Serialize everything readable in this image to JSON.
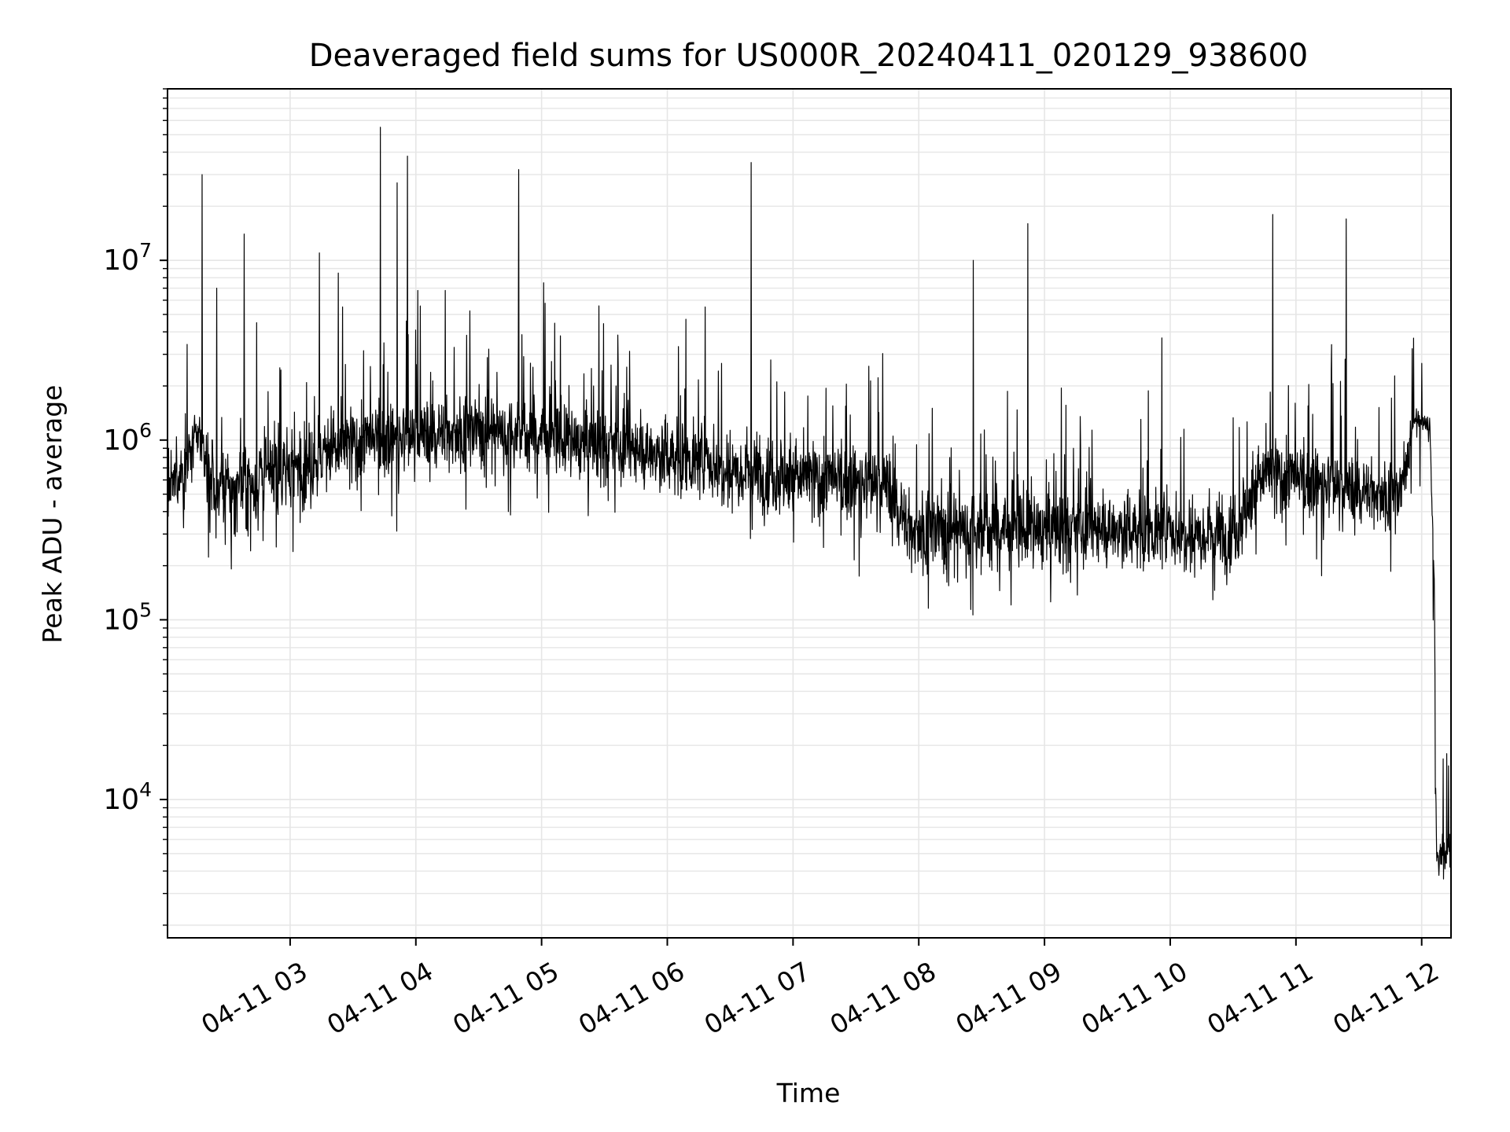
{
  "chart_data": {
    "type": "line",
    "title": "Deaveraged field sums for US000R_20240411_020129_938600",
    "xlabel": "Time",
    "ylabel": "Peak ADU - average",
    "x_axis": {
      "kind": "time",
      "range": [
        "2024-04-11 02:01:29",
        "2024-04-11 12:14:00"
      ],
      "ticks": [
        {
          "value": "2024-04-11 03:00",
          "label": "04-11 03"
        },
        {
          "value": "2024-04-11 04:00",
          "label": "04-11 04"
        },
        {
          "value": "2024-04-11 05:00",
          "label": "04-11 05"
        },
        {
          "value": "2024-04-11 06:00",
          "label": "04-11 06"
        },
        {
          "value": "2024-04-11 07:00",
          "label": "04-11 07"
        },
        {
          "value": "2024-04-11 08:00",
          "label": "04-11 08"
        },
        {
          "value": "2024-04-11 09:00",
          "label": "04-11 09"
        },
        {
          "value": "2024-04-11 10:00",
          "label": "04-11 10"
        },
        {
          "value": "2024-04-11 11:00",
          "label": "04-11 11"
        },
        {
          "value": "2024-04-11 12:00",
          "label": "04-11 12"
        }
      ]
    },
    "y_axis": {
      "scale": "log",
      "range": [
        1700,
        90000000
      ],
      "ticks": [
        {
          "value": 10000,
          "base": "10",
          "exp": "4"
        },
        {
          "value": 100000,
          "base": "10",
          "exp": "5"
        },
        {
          "value": 1000000,
          "base": "10",
          "exp": "6"
        },
        {
          "value": 10000000,
          "base": "10",
          "exp": "7"
        }
      ]
    },
    "grid": true,
    "line_color": "#000000",
    "grid_color": "#e6e6e6",
    "trend": [
      {
        "t": "2024-04-11 02:01:29",
        "median": 500000,
        "spread": 0.35
      },
      {
        "t": "2024-04-11 02:10",
        "median": 720000,
        "spread": 0.3
      },
      {
        "t": "2024-04-11 02:16",
        "median": 1100000,
        "spread": 0.3
      },
      {
        "t": "2024-04-11 02:25",
        "median": 500000,
        "spread": 0.45
      },
      {
        "t": "2024-04-11 02:45",
        "median": 600000,
        "spread": 0.55
      },
      {
        "t": "2024-04-11 03:30",
        "median": 950000,
        "spread": 0.45
      },
      {
        "t": "2024-04-11 04:30",
        "median": 1150000,
        "spread": 0.4
      },
      {
        "t": "2024-04-11 05:00",
        "median": 1050000,
        "spread": 0.4
      },
      {
        "t": "2024-04-11 06:00",
        "median": 820000,
        "spread": 0.45
      },
      {
        "t": "2024-04-11 07:00",
        "median": 620000,
        "spread": 0.45
      },
      {
        "t": "2024-04-11 07:45",
        "median": 560000,
        "spread": 0.45
      },
      {
        "t": "2024-04-11 07:55",
        "median": 320000,
        "spread": 0.45
      },
      {
        "t": "2024-04-11 09:00",
        "median": 320000,
        "spread": 0.45
      },
      {
        "t": "2024-04-11 10:30",
        "median": 310000,
        "spread": 0.45
      },
      {
        "t": "2024-04-11 10:45",
        "median": 650000,
        "spread": 0.45
      },
      {
        "t": "2024-04-11 11:30",
        "median": 520000,
        "spread": 0.4
      },
      {
        "t": "2024-04-11 11:50",
        "median": 500000,
        "spread": 0.35
      },
      {
        "t": "2024-04-11 11:56",
        "median": 1300000,
        "spread": 0.15
      },
      {
        "t": "2024-04-11 12:04",
        "median": 1200000,
        "spread": 0.15
      },
      {
        "t": "2024-04-11 12:06",
        "median": 150000,
        "spread": 0.2
      },
      {
        "t": "2024-04-11 12:07",
        "median": 5000,
        "spread": 0.25
      },
      {
        "t": "2024-04-11 12:14",
        "median": 5000,
        "spread": 0.25
      }
    ],
    "spikes": [
      {
        "t": "2024-04-11 02:18",
        "value": 30000000
      },
      {
        "t": "2024-04-11 02:25",
        "value": 7000000
      },
      {
        "t": "2024-04-11 02:38",
        "value": 14000000
      },
      {
        "t": "2024-04-11 02:44",
        "value": 4500000
      },
      {
        "t": "2024-04-11 03:14",
        "value": 11000000
      },
      {
        "t": "2024-04-11 03:23",
        "value": 8500000
      },
      {
        "t": "2024-04-11 03:25",
        "value": 5500000
      },
      {
        "t": "2024-04-11 03:43",
        "value": 55000000
      },
      {
        "t": "2024-04-11 03:51",
        "value": 27000000
      },
      {
        "t": "2024-04-11 03:56",
        "value": 38000000
      },
      {
        "t": "2024-04-11 04:01",
        "value": 6800000
      },
      {
        "t": "2024-04-11 04:14",
        "value": 6800000
      },
      {
        "t": "2024-04-11 04:49",
        "value": 32000000
      },
      {
        "t": "2024-04-11 05:01",
        "value": 7500000
      },
      {
        "t": "2024-04-11 05:09",
        "value": 3800000
      },
      {
        "t": "2024-04-11 06:18",
        "value": 5500000
      },
      {
        "t": "2024-04-11 06:40",
        "value": 35000000
      },
      {
        "t": "2024-04-11 08:26",
        "value": 10000000
      },
      {
        "t": "2024-04-11 08:52",
        "value": 16000000
      },
      {
        "t": "2024-04-11 09:56",
        "value": 3700000
      },
      {
        "t": "2024-04-11 10:49",
        "value": 18000000
      },
      {
        "t": "2024-04-11 11:17",
        "value": 3400000
      },
      {
        "t": "2024-04-11 11:24",
        "value": 17000000
      }
    ]
  }
}
